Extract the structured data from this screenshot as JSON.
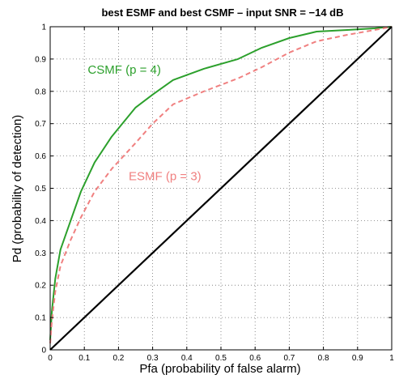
{
  "chart_data": {
    "type": "line",
    "title": "best ESMF and best CSMF   –   input SNR = −14 dB",
    "xlabel": "Pfa (probability of false alarm)",
    "ylabel": "Pd (probability of detection)",
    "xlim": [
      0,
      1
    ],
    "ylim": [
      0,
      1
    ],
    "xticks": [
      "0",
      "0.1",
      "0.2",
      "0.3",
      "0.4",
      "0.5",
      "0.6",
      "0.7",
      "0.8",
      "0.9",
      "1"
    ],
    "yticks": [
      "0",
      "0.1",
      "0.2",
      "0.3",
      "0.4",
      "0.5",
      "0.6",
      "0.7",
      "0.8",
      "0.9",
      "1"
    ],
    "grid": true,
    "series": [
      {
        "name": "CSMF (p = 4)",
        "color": "#2ca02c",
        "style": "solid",
        "x": [
          0,
          0.005,
          0.015,
          0.03,
          0.06,
          0.09,
          0.13,
          0.18,
          0.25,
          0.3,
          0.36,
          0.45,
          0.55,
          0.62,
          0.7,
          0.78,
          0.87,
          0.95,
          1.0
        ],
        "y": [
          0.03,
          0.12,
          0.22,
          0.31,
          0.4,
          0.49,
          0.58,
          0.66,
          0.75,
          0.79,
          0.835,
          0.87,
          0.9,
          0.935,
          0.965,
          0.985,
          0.99,
          0.995,
          1.0
        ]
      },
      {
        "name": "ESMF (p = 3)",
        "color": "#f08080",
        "style": "dashed",
        "x": [
          0,
          0.005,
          0.015,
          0.03,
          0.06,
          0.09,
          0.13,
          0.18,
          0.25,
          0.3,
          0.36,
          0.45,
          0.55,
          0.62,
          0.7,
          0.78,
          0.87,
          0.95,
          1.0
        ],
        "y": [
          0.02,
          0.09,
          0.18,
          0.26,
          0.34,
          0.41,
          0.49,
          0.56,
          0.64,
          0.7,
          0.76,
          0.8,
          0.84,
          0.875,
          0.92,
          0.955,
          0.975,
          0.99,
          1.0
        ]
      },
      {
        "name": "",
        "color": "#000000",
        "style": "solid",
        "x": [
          0,
          1
        ],
        "y": [
          0,
          1
        ]
      }
    ],
    "annotations": [
      {
        "text": "CSMF (p = 4)",
        "x": 0.11,
        "y": 0.855,
        "color": "#2ca02c"
      },
      {
        "text": "ESMF (p = 3)",
        "x": 0.23,
        "y": 0.525,
        "color": "#f08080"
      }
    ]
  }
}
